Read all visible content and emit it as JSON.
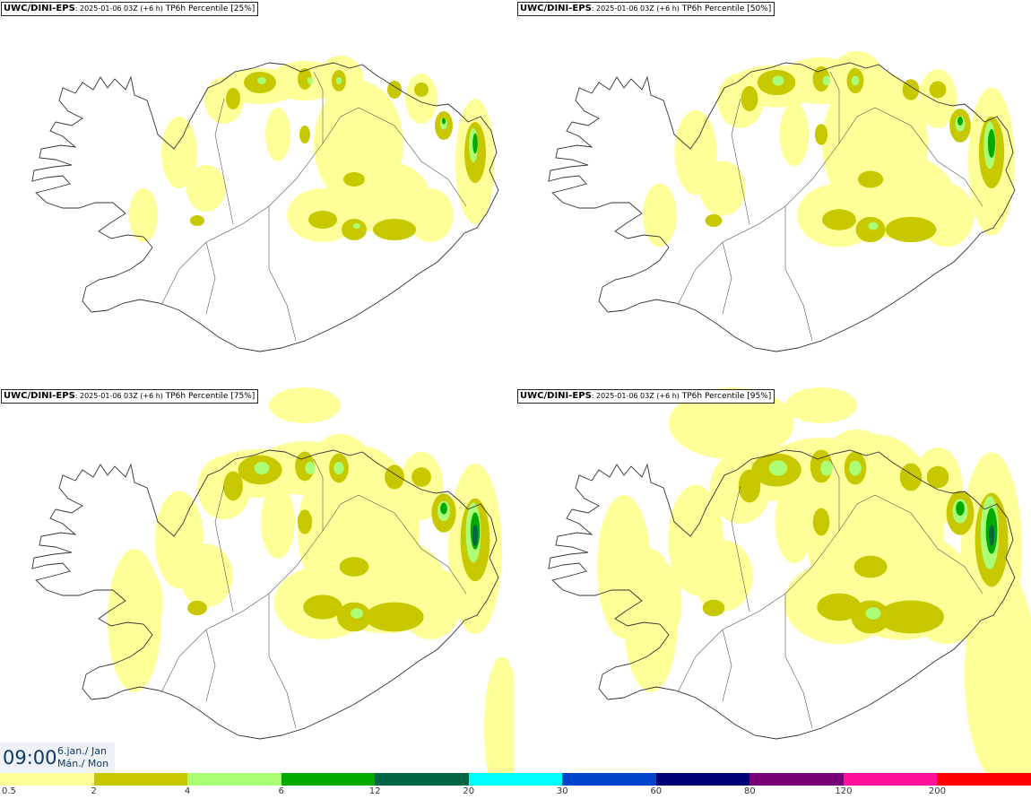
{
  "panels": [
    {
      "model": "UWC/DINI-EPS",
      "run_info": ": 2025-01-06 03Z (+6 h)",
      "product": " TP6h Percentile [25%]"
    },
    {
      "model": "UWC/DINI-EPS",
      "run_info": ": 2025-01-06 03Z (+6 h)",
      "product": " TP6h Percentile [50%]"
    },
    {
      "model": "UWC/DINI-EPS",
      "run_info": ": 2025-01-06 03Z (+6 h)",
      "product": " TP6h Percentile [75%]"
    },
    {
      "model": "UWC/DINI-EPS",
      "run_info": ": 2025-01-06 03Z (+6 h)",
      "product": " TP6h Percentile [95%]"
    }
  ],
  "valid_time": {
    "time": "09:00",
    "date_line1": "6.jan./ Jan",
    "date_line2": "Mán./ Mon"
  },
  "legend": {
    "labels": [
      "0.5",
      "2",
      "4",
      "6",
      "12",
      "20",
      "30",
      "60",
      "80",
      "120",
      "200"
    ],
    "colors": [
      "#ffff99",
      "#c8c800",
      "#aaff77",
      "#00aa00",
      "#006644",
      "#00ffff",
      "#0044cc",
      "#000077",
      "#770077",
      "#ff1199",
      "#ff0000"
    ]
  },
  "precip_colors": {
    "light": "#ffff99",
    "moderate": "#c8c800",
    "heavy": "#aaff77",
    "very_heavy": "#00aa00",
    "extreme": "#006644"
  }
}
